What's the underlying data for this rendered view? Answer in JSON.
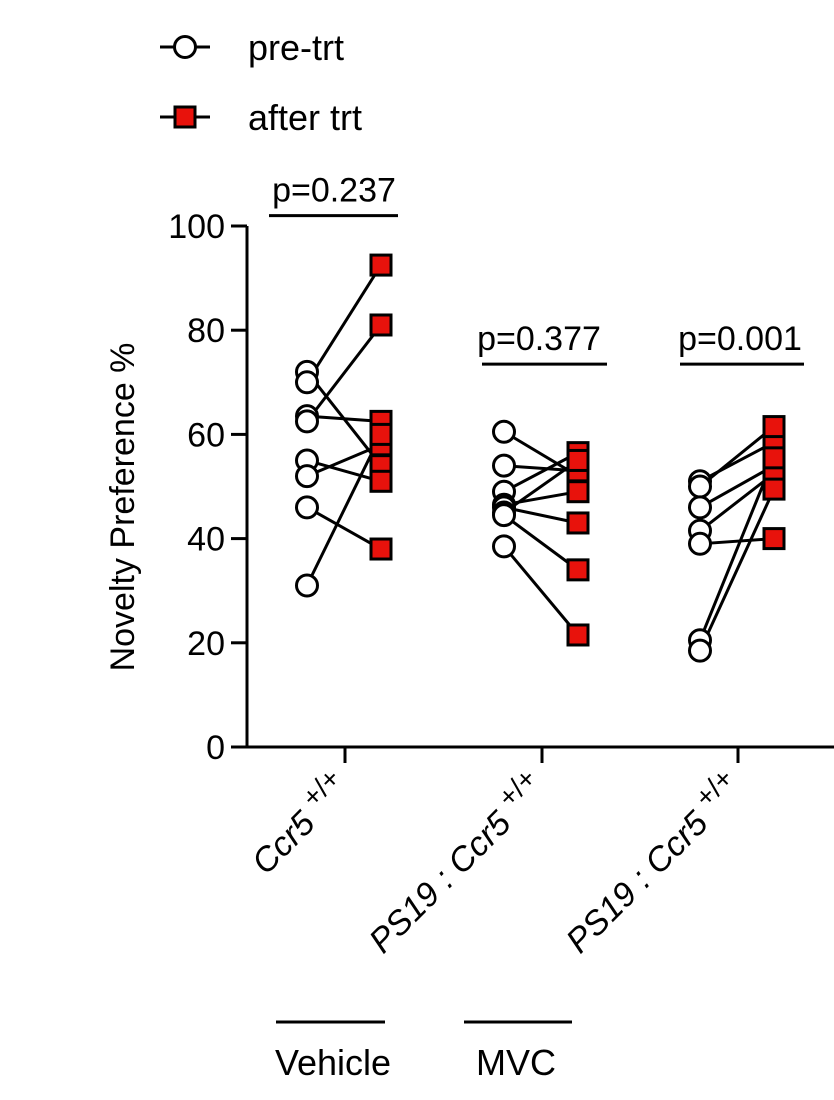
{
  "chart_data": {
    "type": "scatter",
    "subtype": "paired before-after dot plot",
    "ylabel": "Novelty Preference %",
    "ylim": [
      0,
      100
    ],
    "yticks": [
      0,
      20,
      40,
      60,
      80,
      100
    ],
    "legend": {
      "placement": "top-left",
      "entries": [
        {
          "label": "pre-trt",
          "marker": "open-circle",
          "color": "#ffffff"
        },
        {
          "label": "after trt",
          "marker": "filled-square",
          "color": "#e8120c"
        }
      ]
    },
    "categories": [
      {
        "label_main": "Ccr5",
        "label_sup": "+/+"
      },
      {
        "label_prefix": "PS19 : ",
        "label_main": "Ccr5",
        "label_sup": "+/+"
      },
      {
        "label_prefix": "PS19 : ",
        "label_main": "Ccr5",
        "label_sup": "+/+"
      }
    ],
    "groups": [
      {
        "pre": [
          72,
          70,
          63.5,
          62.5,
          55,
          52,
          46,
          31
        ],
        "after": [
          54,
          92.5,
          62.5,
          81,
          51,
          58,
          38,
          60
        ]
      },
      {
        "pre": [
          60.5,
          54,
          49,
          46.5,
          46,
          45,
          44.5,
          38.5
        ],
        "after": [
          52,
          53,
          56.5,
          49,
          43,
          55,
          34,
          21.5
        ]
      },
      {
        "pre": [
          51,
          50,
          46,
          41.5,
          39,
          20.5,
          18.5
        ],
        "after": [
          58.5,
          61.5,
          54,
          52.5,
          40,
          55.5,
          49.5
        ]
      }
    ],
    "pvalues": [
      "p=0.237",
      "p=0.377",
      "p=0.001"
    ],
    "bottom_groups": [
      {
        "label": "Vehicle"
      },
      {
        "label": "MVC"
      }
    ],
    "colors": {
      "pre_fill": "#ffffff",
      "after_fill": "#e8120c",
      "line": "#000000"
    }
  }
}
